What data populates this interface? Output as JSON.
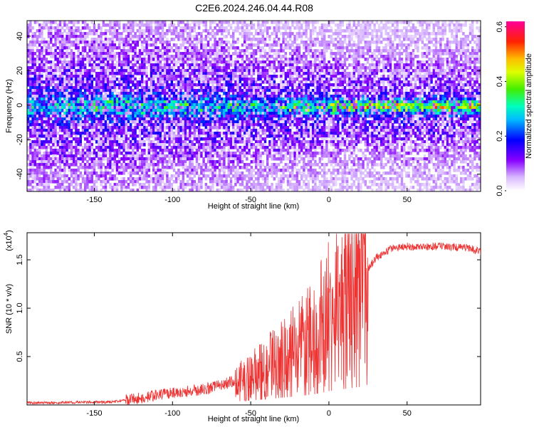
{
  "figure_title": "C2E6.2024.246.04.44.R08",
  "colors": {
    "snr_line": "#ee3333",
    "axes": "#000000",
    "background": "#ffffff"
  },
  "chart_data": [
    {
      "type": "heatmap",
      "xlabel": "Height of straight line (km)",
      "ylabel": "Frequency (Hz)",
      "xlim": [
        -193,
        97
      ],
      "ylim": [
        -50,
        49
      ],
      "xticks": [
        -150,
        -100,
        -50,
        0,
        50
      ],
      "yticks": [
        -40,
        -20,
        0,
        20,
        40
      ],
      "colorbar": {
        "label": "Normalized spectral amplitude",
        "range": [
          0.0,
          0.62
        ],
        "ticks": [
          0.0,
          0.2,
          0.4,
          0.6
        ],
        "colormap": "rainbow (white → violet → blue → cyan → green → yellow → red → magenta)",
        "placement": "right"
      },
      "description_values": {
        "dominant_band_center_hz": 0,
        "band_amplitude_range": [
          0.1,
          0.45
        ],
        "background_amplitude_range": [
          0.0,
          0.15
        ]
      }
    },
    {
      "type": "line",
      "xlabel": "Height of straight line (km)",
      "ylabel": "SNR (10 * v/v)",
      "y_multiplier": "(x10",
      "y_multiplier_exp": "4",
      "y_multiplier_close": ")",
      "xlim": [
        -193,
        97
      ],
      "ylim": [
        0,
        1.78
      ],
      "xticks": [
        -150,
        -100,
        -50,
        0,
        50
      ],
      "yticks": [
        0.5,
        1.0,
        1.5
      ],
      "series": [
        {
          "x": [
            -193,
            -140,
            -125,
            -110,
            -95,
            -80,
            -70,
            -60,
            -50,
            -40,
            -30,
            -20,
            -10,
            0,
            10,
            20,
            25,
            30,
            40,
            50,
            60,
            70,
            80,
            90,
            97
          ],
          "values": [
            0.02,
            0.03,
            0.06,
            0.1,
            0.13,
            0.16,
            0.2,
            0.25,
            0.3,
            0.4,
            0.5,
            0.6,
            0.72,
            0.95,
            1.1,
            1.25,
            1.4,
            1.52,
            1.62,
            1.64,
            1.63,
            1.64,
            1.63,
            1.62,
            1.58
          ]
        }
      ]
    }
  ]
}
